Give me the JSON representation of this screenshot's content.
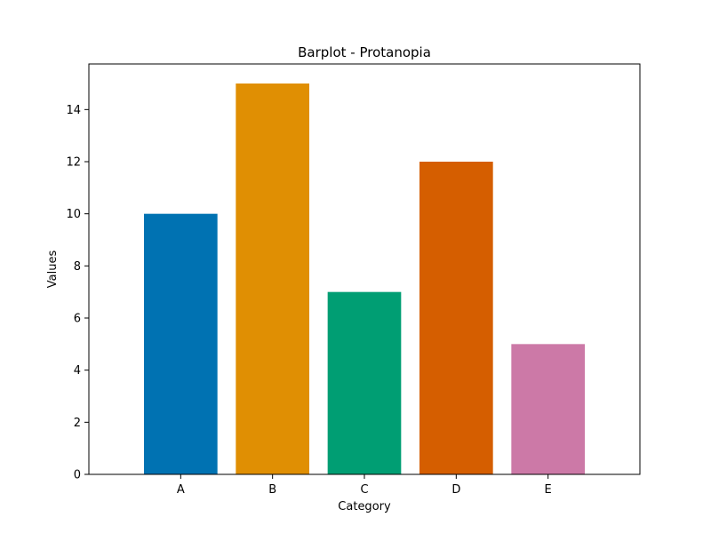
{
  "chart_data": {
    "type": "bar",
    "title": "Barplot - Protanopia",
    "xlabel": "Category",
    "ylabel": "Values",
    "categories": [
      "A",
      "B",
      "C",
      "D",
      "E"
    ],
    "values": [
      10,
      15,
      7,
      12,
      5
    ],
    "colors": [
      "#0072b2",
      "#e08f03",
      "#009e73",
      "#d55e00",
      "#cc79a7"
    ],
    "ylim": [
      0,
      15.75
    ],
    "yticks": [
      0,
      2,
      4,
      6,
      8,
      10,
      12,
      14
    ],
    "grid": false
  }
}
